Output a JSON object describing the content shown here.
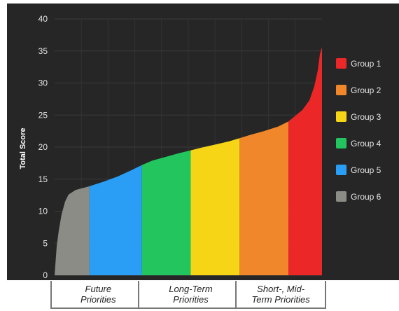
{
  "chart_data": {
    "type": "area",
    "ylabel": "Total Score",
    "xlabel": "",
    "ylim": [
      0,
      40
    ],
    "yticks": [
      0,
      5,
      10,
      15,
      20,
      25,
      30,
      35,
      40
    ],
    "grid": true,
    "legend_position": "right",
    "background": "#262626",
    "series": [
      {
        "name": "Group 6",
        "color": "#8c8c87",
        "x": [
          0,
          0.3,
          0.6,
          1,
          1.5,
          2,
          3,
          5
        ],
        "y": [
          0,
          4.5,
          7,
          9.5,
          11.5,
          12.6,
          13.3,
          13.9
        ]
      },
      {
        "name": "Group 5",
        "color": "#2a9df4",
        "x": [
          5,
          7,
          9,
          11,
          12.5
        ],
        "y": [
          13.9,
          14.6,
          15.4,
          16.4,
          17.2
        ]
      },
      {
        "name": "Group 4",
        "color": "#22c55e",
        "x": [
          12.5,
          14,
          16,
          18,
          19.5
        ],
        "y": [
          17.2,
          17.9,
          18.5,
          19.1,
          19.5
        ]
      },
      {
        "name": "Group 3",
        "color": "#f5d516",
        "x": [
          19.5,
          21,
          23,
          25,
          26.5
        ],
        "y": [
          19.5,
          19.9,
          20.4,
          20.9,
          21.4
        ]
      },
      {
        "name": "Group 2",
        "color": "#f0872a",
        "x": [
          26.5,
          28,
          30,
          32,
          33.5
        ],
        "y": [
          21.4,
          21.9,
          22.5,
          23.2,
          24.0
        ]
      },
      {
        "name": "Group 1",
        "color": "#ec2727",
        "x": [
          33.5,
          34.5,
          35.5,
          36.5,
          37.2,
          37.7,
          38.0,
          38.3
        ],
        "y": [
          24.0,
          24.9,
          25.8,
          27.3,
          29.5,
          32.0,
          34.5,
          35.6
        ]
      }
    ],
    "x_range": [
      0,
      38.3
    ],
    "annotations": [
      {
        "label": "Future\nPriorities",
        "x_start": 0,
        "x_end": 12.5
      },
      {
        "label": "Long-Term\nPriorities",
        "x_start": 12.5,
        "x_end": 26.5
      },
      {
        "label": "Short-, Mid-\nTerm Priorities",
        "x_start": 26.5,
        "x_end": 38.3
      }
    ]
  }
}
